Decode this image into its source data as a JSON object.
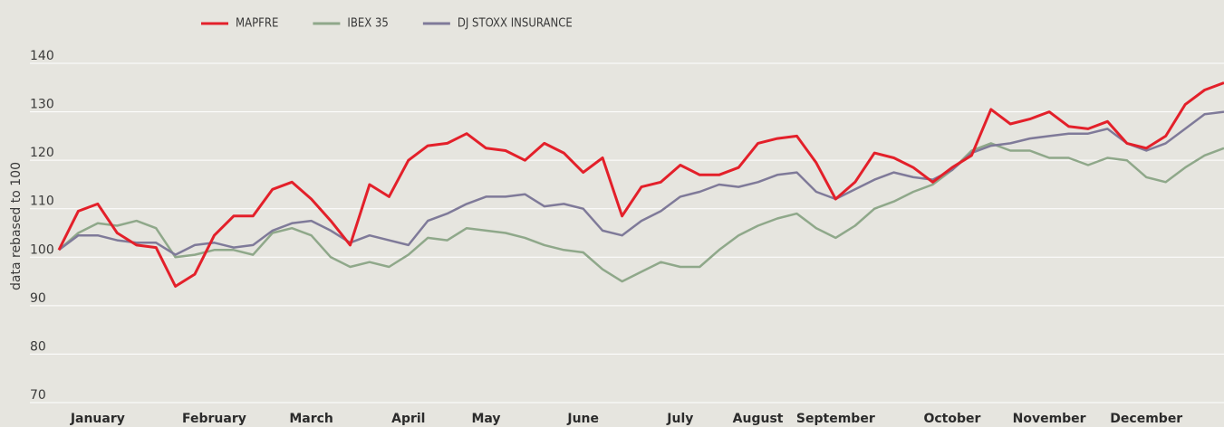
{
  "chart_data": {
    "type": "line",
    "y_label": "data rebased to 100",
    "categories": [
      null,
      null,
      "January",
      null,
      null,
      null,
      null,
      null,
      "February",
      null,
      null,
      null,
      null,
      "March",
      null,
      null,
      null,
      null,
      "April",
      null,
      null,
      null,
      "May",
      null,
      null,
      null,
      null,
      "June",
      null,
      null,
      null,
      null,
      "July",
      null,
      null,
      null,
      "August",
      null,
      null,
      null,
      "September",
      null,
      null,
      null,
      null,
      null,
      "October",
      null,
      null,
      null,
      null,
      "November",
      null,
      null,
      null,
      null,
      "December",
      null,
      null,
      null,
      null
    ],
    "series": [
      {
        "name": "MAPFRE",
        "color": "#e3202a",
        "values": [
          100,
          108,
          109.5,
          103.5,
          101,
          100.5,
          92.5,
          95,
          103,
          107,
          107,
          112.5,
          114,
          110.5,
          106,
          101,
          113.5,
          111,
          118.5,
          121.5,
          122,
          124,
          121,
          120.5,
          118.5,
          122,
          120,
          116,
          119,
          107,
          113,
          114,
          117.5,
          115.5,
          115.5,
          117,
          122,
          123,
          123.5,
          118,
          110.5,
          114,
          120,
          119,
          117,
          114,
          117,
          119.5,
          129,
          126,
          127,
          128.5,
          125.5,
          125,
          126.5,
          122,
          121,
          123.5,
          130,
          133,
          134.5
        ]
      },
      {
        "name": "IBEX 35",
        "color": "#8fa88a",
        "values": [
          100,
          103.5,
          105.5,
          105,
          106,
          104.5,
          98.5,
          99,
          100,
          100,
          99,
          103.5,
          104.5,
          103,
          98.5,
          96.5,
          97.5,
          96.5,
          99,
          102.5,
          102,
          104.5,
          104,
          103.5,
          102.5,
          101,
          100,
          99.5,
          96,
          93.5,
          95.5,
          97.5,
          96.5,
          96.5,
          100,
          103,
          105,
          106.5,
          107.5,
          104.5,
          102.5,
          105,
          108.5,
          110,
          112,
          113.5,
          116.5,
          120.5,
          122,
          120.5,
          120.5,
          119,
          119,
          117.5,
          119,
          118.5,
          115,
          114,
          117,
          119.5,
          121
        ]
      },
      {
        "name": "DJ STOXX INSURANCE",
        "color": "#7f7a99",
        "values": [
          100,
          103,
          103,
          102,
          101.5,
          101.5,
          99,
          101,
          101.5,
          100.5,
          101,
          104,
          105.5,
          106,
          104,
          101.5,
          103,
          102,
          101,
          106,
          107.5,
          109.5,
          111,
          111,
          111.5,
          109,
          109.5,
          108.5,
          104,
          103,
          106,
          108,
          111,
          112,
          113.5,
          113,
          114,
          115.5,
          116,
          112,
          110.5,
          112.5,
          114.5,
          116,
          115,
          114.5,
          116.5,
          120,
          121.5,
          122,
          123,
          123.5,
          124,
          124,
          125,
          122,
          120.5,
          122,
          125,
          128,
          128.5
        ]
      }
    ],
    "ylim": [
      70,
      140
    ],
    "yticks": [
      70,
      80,
      90,
      100,
      110,
      120,
      130,
      140
    ],
    "grid": true,
    "legend": "top"
  }
}
